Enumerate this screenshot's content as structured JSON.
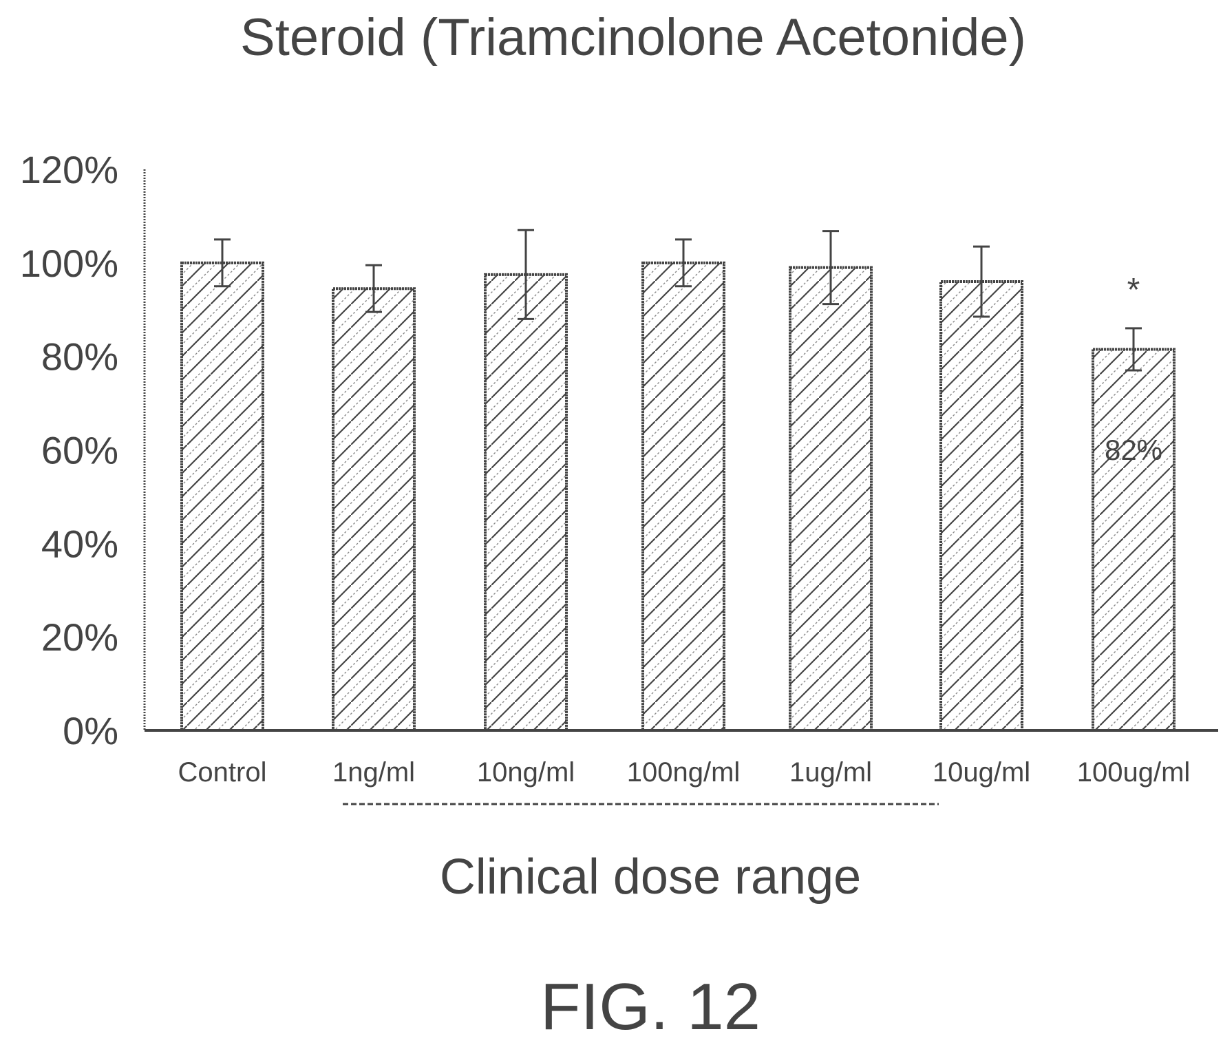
{
  "chart_data": {
    "type": "bar",
    "title": "Steroid (Triamcinolone Acetonide)",
    "xlabel": "Clinical dose range",
    "ylabel": "",
    "categories": [
      "Control",
      "1ng/ml",
      "10ng/ml",
      "100ng/ml",
      "1ug/ml",
      "10ug/ml",
      "100ug/ml"
    ],
    "values": [
      100,
      94.5,
      97.5,
      100,
      99,
      96,
      81.5
    ],
    "errors": [
      5,
      5,
      9.5,
      5,
      7.8,
      7.5,
      4.5
    ],
    "ylim": [
      0,
      120
    ],
    "yticks": [
      "0%",
      "20%",
      "40%",
      "60%",
      "80%",
      "100%",
      "120%"
    ],
    "ytick_values": [
      0,
      20,
      40,
      60,
      80,
      100,
      120
    ],
    "annotations": [
      {
        "category": "100ug/ml",
        "star": "*",
        "label": "82%"
      }
    ],
    "clinical_range": [
      "1ng/ml",
      "10ug/ml"
    ],
    "bar_pattern": "diagonal-hatch",
    "grid": false,
    "legend": "none"
  },
  "figure_label": "FIG. 12",
  "colors": {
    "ink": "#444444",
    "bar_fill": "#ffffff"
  }
}
